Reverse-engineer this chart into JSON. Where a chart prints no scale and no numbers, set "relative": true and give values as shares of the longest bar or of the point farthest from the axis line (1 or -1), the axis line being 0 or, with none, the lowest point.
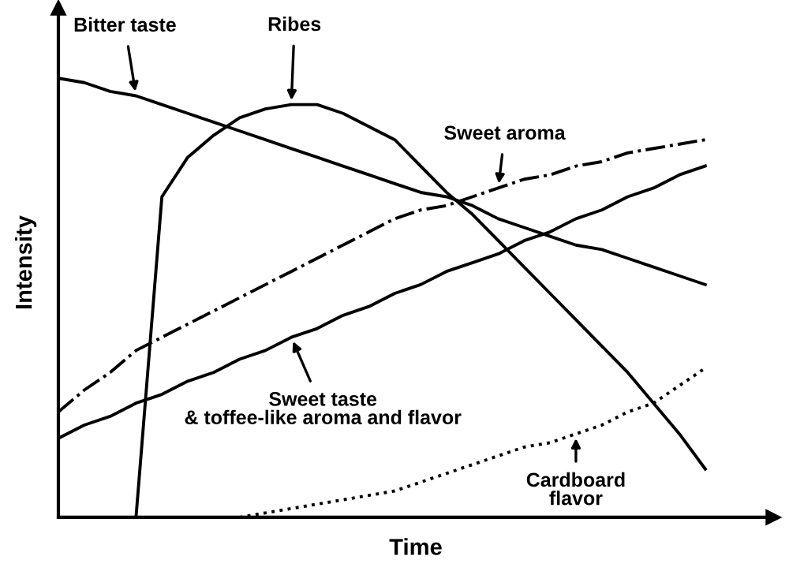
{
  "chart_data": {
    "type": "line",
    "relative": true,
    "xlabel": "Time",
    "ylabel": "Intensity",
    "categories": [
      null,
      null,
      null,
      null,
      null,
      null,
      null,
      null,
      null,
      null,
      null,
      null,
      null,
      null,
      null,
      null,
      null,
      null,
      null,
      null,
      null,
      null,
      null,
      null,
      null,
      null
    ],
    "series": [
      {
        "color": "#000000",
        "line_style": "solid",
        "values": [
          1.0,
          0.99,
          0.97,
          0.96,
          0.94,
          0.92,
          0.9,
          0.88,
          0.86,
          0.84,
          0.82,
          0.8,
          0.78,
          0.76,
          0.74,
          0.73,
          0.71,
          0.68,
          0.66,
          0.64,
          0.62,
          0.61,
          0.59,
          0.57,
          0.55,
          0.53
        ]
      },
      {
        "color": "#000000",
        "line_style": "solid",
        "values": [
          null,
          null,
          null,
          0,
          0.73,
          0.82,
          0.87,
          0.91,
          0.93,
          0.94,
          0.94,
          0.92,
          0.89,
          0.86,
          0.8,
          0.74,
          0.69,
          0.63,
          0.57,
          0.51,
          0.45,
          0.39,
          0.33,
          0.26,
          0.19,
          0.11
        ]
      },
      {
        "color": "#000000",
        "line_style": "dashdot",
        "values": [
          0.24,
          0.29,
          0.33,
          0.38,
          0.41,
          0.44,
          0.47,
          0.5,
          0.53,
          0.56,
          0.59,
          0.62,
          0.65,
          0.68,
          0.7,
          0.71,
          0.73,
          0.75,
          0.77,
          0.78,
          0.8,
          0.81,
          0.83,
          0.84,
          0.85,
          0.86
        ]
      },
      {
        "color": "#000000",
        "line_style": "solid",
        "values": [
          0.18,
          0.21,
          0.23,
          0.26,
          0.28,
          0.31,
          0.33,
          0.36,
          0.38,
          0.41,
          0.43,
          0.46,
          0.48,
          0.51,
          0.53,
          0.56,
          0.58,
          0.6,
          0.63,
          0.65,
          0.68,
          0.7,
          0.73,
          0.75,
          0.78,
          0.8
        ]
      },
      {
        "color": "#000000",
        "line_style": "dotted",
        "values": [
          null,
          null,
          null,
          null,
          null,
          null,
          null,
          0,
          0.01,
          0.02,
          0.03,
          0.04,
          0.05,
          0.06,
          0.08,
          0.1,
          0.12,
          0.14,
          0.16,
          0.17,
          0.19,
          0.21,
          0.24,
          0.26,
          0.3,
          0.34
        ]
      }
    ],
    "annotations": [
      "Bitter taste",
      "Ribes",
      "Sweet aroma",
      "Sweet taste\n& toffee-like aroma and flavor",
      "Cardboard\nflavor"
    ]
  }
}
